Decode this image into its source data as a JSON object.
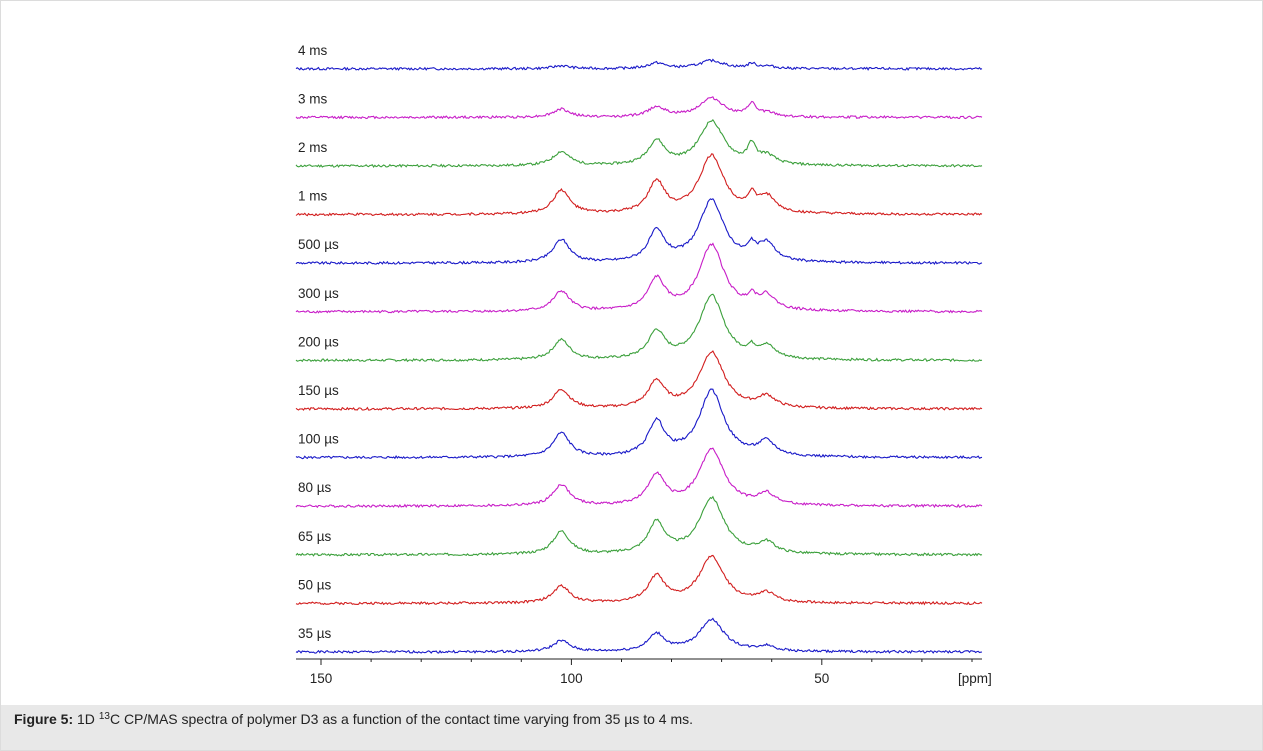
{
  "figure": {
    "caption_label": "Figure 5:",
    "caption_pre": " 1D ",
    "caption_sup": "13",
    "caption_post": "C CP/MAS spectra of polymer D3 as a function of the contact time varying from 35 µs to 4 ms."
  },
  "chart_data": {
    "type": "line",
    "title": "",
    "xlabel": "",
    "ylabel": "",
    "x_unit_label": "[ppm]",
    "x_axis_reversed": true,
    "xlim": [
      155,
      18
    ],
    "x_ticks": [
      150,
      100,
      50
    ],
    "x_tick_labels": [
      "150",
      "100",
      "50"
    ],
    "grid": false,
    "layout": "stacked-offset",
    "colors": {
      "blue": "#1a1ac8",
      "magenta": "#c81ec8",
      "green": "#3ca03c",
      "red": "#d21e1e"
    },
    "series": [
      {
        "name": "35 µs",
        "color": "#1a1ac8",
        "noise": 1,
        "peaks": [
          [
            102,
            0.55
          ],
          [
            83,
            0.85
          ],
          [
            72,
            1.6
          ],
          [
            61,
            0.25
          ]
        ]
      },
      {
        "name": "50 µs",
        "color": "#d21e1e",
        "noise": 2,
        "peaks": [
          [
            102,
            0.85
          ],
          [
            83,
            1.3
          ],
          [
            72,
            2.3
          ],
          [
            61,
            0.45
          ]
        ]
      },
      {
        "name": "65 µs",
        "color": "#3ca03c",
        "noise": 3,
        "peaks": [
          [
            102,
            1.15
          ],
          [
            83,
            1.55
          ],
          [
            72,
            2.8
          ],
          [
            61,
            0.55
          ]
        ]
      },
      {
        "name": "80 µs",
        "color": "#c81ec8",
        "noise": 4,
        "peaks": [
          [
            102,
            1.05
          ],
          [
            83,
            1.5
          ],
          [
            72,
            2.8
          ],
          [
            61,
            0.55
          ]
        ]
      },
      {
        "name": "100 µs",
        "color": "#1a1ac8",
        "noise": 5,
        "peaks": [
          [
            102,
            1.2
          ],
          [
            83,
            1.7
          ],
          [
            72,
            3.3
          ],
          [
            61,
            0.7
          ]
        ]
      },
      {
        "name": "150 µs",
        "color": "#d21e1e",
        "noise": 6,
        "peaks": [
          [
            102,
            0.95
          ],
          [
            83,
            1.3
          ],
          [
            72,
            2.8
          ],
          [
            61,
            0.55
          ]
        ]
      },
      {
        "name": "200 µs",
        "color": "#3ca03c",
        "noise": 7,
        "peaks": [
          [
            102,
            1.0
          ],
          [
            83,
            1.35
          ],
          [
            72,
            3.2
          ],
          [
            64,
            0.35
          ],
          [
            61,
            0.6
          ]
        ]
      },
      {
        "name": "300 µs",
        "color": "#c81ec8",
        "noise": 8,
        "peaks": [
          [
            102,
            1.0
          ],
          [
            83,
            1.55
          ],
          [
            72,
            3.3
          ],
          [
            64,
            0.5
          ],
          [
            61,
            0.7
          ]
        ]
      },
      {
        "name": "500 µs",
        "color": "#1a1ac8",
        "noise": 9,
        "peaks": [
          [
            102,
            1.15
          ],
          [
            83,
            1.5
          ],
          [
            72,
            3.1
          ],
          [
            64,
            0.55
          ],
          [
            61,
            0.9
          ]
        ]
      },
      {
        "name": "1 ms",
        "color": "#d21e1e",
        "noise": 10,
        "peaks": [
          [
            102,
            1.2
          ],
          [
            83,
            1.55
          ],
          [
            72,
            2.9
          ],
          [
            64,
            0.7
          ],
          [
            61,
            0.8
          ]
        ]
      },
      {
        "name": "2 ms",
        "color": "#3ca03c",
        "noise": 11,
        "peaks": [
          [
            102,
            0.7
          ],
          [
            83,
            1.2
          ],
          [
            72,
            2.2
          ],
          [
            64,
            0.9
          ],
          [
            61,
            0.45
          ]
        ]
      },
      {
        "name": "3 ms",
        "color": "#c81ec8",
        "noise": 12,
        "peaks": [
          [
            102,
            0.4
          ],
          [
            83,
            0.5
          ],
          [
            72,
            0.95
          ],
          [
            64,
            0.6
          ],
          [
            61,
            0.2
          ]
        ]
      },
      {
        "name": "4 ms",
        "color": "#1a1ac8",
        "noise": 13,
        "peaks": [
          [
            102,
            0.15
          ],
          [
            83,
            0.28
          ],
          [
            72,
            0.4
          ],
          [
            64,
            0.22
          ],
          [
            61,
            0.12
          ]
        ]
      }
    ]
  }
}
